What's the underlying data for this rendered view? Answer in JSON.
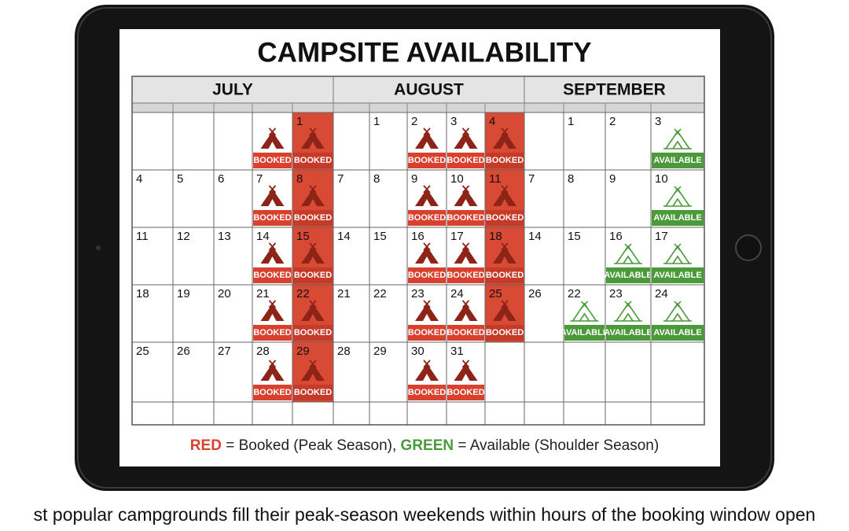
{
  "title": "CAMPSITE AVAILABILITY",
  "calendar": {
    "months": [
      "JULY",
      "AUGUST",
      "SEPTEMBER"
    ],
    "rows": [
      [
        null,
        null,
        null,
        {
          "label": "BOOKED"
        },
        {
          "day": 1,
          "label": "BOOKED",
          "full": true
        },
        null,
        {
          "day": 1
        },
        {
          "day": 2,
          "label": "BOOKED"
        },
        {
          "day": 3,
          "label": "BOOKED"
        },
        {
          "day": 4,
          "label": "BOOKED",
          "full": true
        },
        null,
        {
          "day": 1
        },
        {
          "day": 2
        },
        {
          "day": 3,
          "label": "AVAILABLE"
        }
      ],
      [
        {
          "day": 4
        },
        {
          "day": 5
        },
        {
          "day": 6
        },
        {
          "day": 7,
          "label": "BOOKED"
        },
        {
          "day": 8,
          "label": "BOOKED",
          "full": true
        },
        {
          "day": 7
        },
        {
          "day": 8
        },
        {
          "day": 9,
          "label": "BOOKED"
        },
        {
          "day": 10,
          "label": "BOOKED"
        },
        {
          "day": 11,
          "label": "BOOKED",
          "full": true
        },
        {
          "day": 7
        },
        {
          "day": 8
        },
        {
          "day": 9
        },
        {
          "day": 10,
          "label": "AVAILABLE"
        }
      ],
      [
        {
          "day": 11
        },
        {
          "day": 12
        },
        {
          "day": 13
        },
        {
          "day": 14,
          "label": "BOOKED"
        },
        {
          "day": 15,
          "label": "BOOKED",
          "full": true
        },
        {
          "day": 14
        },
        {
          "day": 15
        },
        {
          "day": 16,
          "label": "BOOKED"
        },
        {
          "day": 17,
          "label": "BOOKED"
        },
        {
          "day": 18,
          "label": "BOOKED",
          "full": true
        },
        {
          "day": 14
        },
        {
          "day": 15
        },
        {
          "day": 16,
          "label": "AVAILABLE"
        },
        {
          "day": 17,
          "label": "AVAILABLE"
        }
      ],
      [
        {
          "day": 18
        },
        {
          "day": 19
        },
        {
          "day": 20
        },
        {
          "day": 21,
          "label": "BOOKED"
        },
        {
          "day": 22,
          "label": "BOOKED",
          "full": true
        },
        {
          "day": 21
        },
        {
          "day": 22
        },
        {
          "day": 23,
          "label": "BOOKED"
        },
        {
          "day": 24,
          "label": "BOOKED"
        },
        {
          "day": 25,
          "label": "BOOKED",
          "full": true
        },
        {
          "day": 26
        },
        {
          "day": 22,
          "label": "AVAILABLE"
        },
        {
          "day": 23,
          "label": "AVAILABLE"
        },
        {
          "day": 24,
          "label": "AVAILABLE"
        }
      ],
      [
        {
          "day": 25
        },
        {
          "day": 26
        },
        {
          "day": 27
        },
        {
          "day": 28,
          "label": "BOOKED"
        },
        {
          "day": 29,
          "label": "BOOKED",
          "full": true
        },
        {
          "day": 28
        },
        {
          "day": 29
        },
        {
          "day": 30,
          "label": "BOOKED"
        },
        {
          "day": 31,
          "label": "BOOKED"
        },
        null,
        null,
        null,
        null,
        null
      ],
      [
        null,
        null,
        null,
        null,
        null,
        null,
        null,
        null,
        null,
        null,
        null,
        null,
        null,
        null
      ]
    ]
  },
  "legend": {
    "red": "RED",
    "red_text": " = Booked (Peak Season), ",
    "green": "GREEN",
    "green_text": " = Available (Shoulder Season)"
  },
  "caption": "st popular campgrounds fill their peak-season weekends within hours of the booking window open"
}
